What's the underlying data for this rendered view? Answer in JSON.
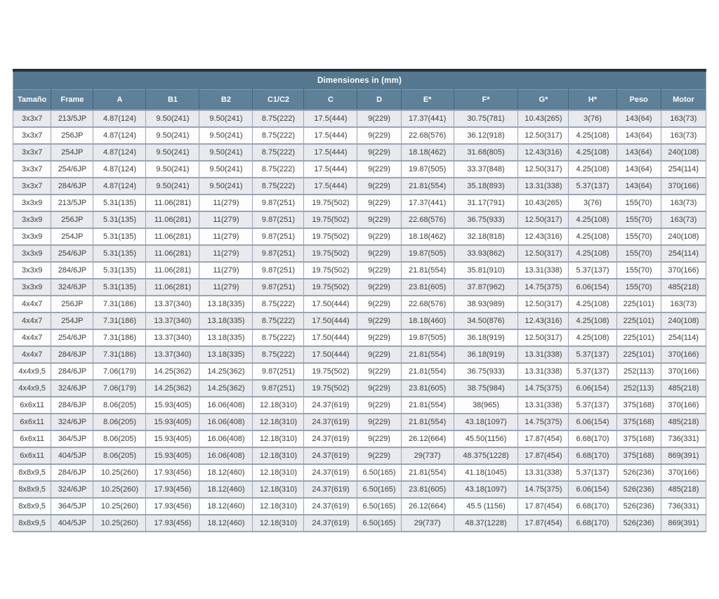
{
  "table": {
    "title": "Dimensiones in (mm)",
    "columns": [
      "Tamaño",
      "Frame",
      "A",
      "B1",
      "B2",
      "C1/C2",
      "C",
      "D",
      "E*",
      "F*",
      "G*",
      "H*",
      "Peso",
      "Motor"
    ],
    "rows": [
      [
        "3x3x7",
        "213/5JP",
        "4.87(124)",
        "9.50(241)",
        "9.50(241)",
        "8.75(222)",
        "17.5(444)",
        "9(229)",
        "17.37(441)",
        "30.75(781)",
        "10.43(265)",
        "3(76)",
        "143(64)",
        "163(73)"
      ],
      [
        "3x3x7",
        "256JP",
        "4.87(124)",
        "9.50(241)",
        "9.50(241)",
        "8.75(222)",
        "17.5(444)",
        "9(229)",
        "22.68(576)",
        "36.12(918)",
        "12.50(317)",
        "4.25(108)",
        "143(64)",
        "163(73)"
      ],
      [
        "3x3x7",
        "254JP",
        "4.87(124)",
        "9.50(241)",
        "9.50(241)",
        "8.75(222)",
        "17.5(444)",
        "9(229)",
        "18.18(462)",
        "31.68(805)",
        "12.43(316)",
        "4.25(108)",
        "143(64)",
        "240(108)"
      ],
      [
        "3x3x7",
        "254/6JP",
        "4.87(124)",
        "9.50(241)",
        "9.50(241)",
        "8.75(222)",
        "17.5(444)",
        "9(229)",
        "19.87(505)",
        "33.37(848)",
        "12.50(317)",
        "4.25(108)",
        "143(64)",
        "254(114)"
      ],
      [
        "3x3x7",
        "284/6JP",
        "4.87(124)",
        "9.50(241)",
        "9.50(241)",
        "8.75(222)",
        "17.5(444)",
        "9(229)",
        "21.81(554)",
        "35.18(893)",
        "13.31(338)",
        "5.37(137)",
        "143(64)",
        "370(166)"
      ],
      [
        "3x3x9",
        "213/5JP",
        "5.31(135)",
        "11.06(281)",
        "11(279)",
        "9.87(251)",
        "19.75(502)",
        "9(229)",
        "17.37(441)",
        "31.17(791)",
        "10.43(265)",
        "3(76)",
        "155(70)",
        "163(73)"
      ],
      [
        "3x3x9",
        "256JP",
        "5.31(135)",
        "11.06(281)",
        "11(279)",
        "9.87(251)",
        "19.75(502)",
        "9(229)",
        "22.68(576)",
        "36.75(933)",
        "12.50(317)",
        "4.25(108)",
        "155(70)",
        "163(73)"
      ],
      [
        "3x3x9",
        "254JP",
        "5.31(135)",
        "11.06(281)",
        "11(279)",
        "9.87(251)",
        "19.75(502)",
        "9(229)",
        "18.18(462)",
        "32.18(818)",
        "12.43(316)",
        "4.25(108)",
        "155(70)",
        "240(108)"
      ],
      [
        "3x3x9",
        "254/6JP",
        "5.31(135)",
        "11.06(281)",
        "11(279)",
        "9.87(251)",
        "19.75(502)",
        "9(229)",
        "19.87(505)",
        "33.93(862)",
        "12.50(317)",
        "4.25(108)",
        "155(70)",
        "254(114)"
      ],
      [
        "3x3x9",
        "284/6JP",
        "5.31(135)",
        "11.06(281)",
        "11(279)",
        "9.87(251)",
        "19.75(502)",
        "9(229)",
        "21.81(554)",
        "35.81(910)",
        "13.31(338)",
        "5.37(137)",
        "155(70)",
        "370(166)"
      ],
      [
        "3x3x9",
        "324/6JP",
        "5.31(135)",
        "11.06(281)",
        "11(279)",
        "9.87(251)",
        "19.75(502)",
        "9(229)",
        "23.81(605)",
        "37.87(962)",
        "14.75(375)",
        "6.06(154)",
        "155(70)",
        "485(218)"
      ],
      [
        "4x4x7",
        "256JP",
        "7.31(186)",
        "13.37(340)",
        "13.18(335)",
        "8.75(222)",
        "17.50(444)",
        "9(229)",
        "22.68(576)",
        "38.93(989)",
        "12.50(317)",
        "4.25(108)",
        "225(101)",
        "163(73)"
      ],
      [
        "4x4x7",
        "254JP",
        "7.31(186)",
        "13.37(340)",
        "13.18(335)",
        "8.75(222)",
        "17.50(444)",
        "9(229)",
        "18.18(460)",
        "34.50(876)",
        "12.43(316)",
        "4.25(108)",
        "225(101)",
        "240(108)"
      ],
      [
        "4x4x7",
        "254/6JP",
        "7.31(186)",
        "13.37(340)",
        "13.18(335)",
        "8.75(222)",
        "17.50(444)",
        "9(229)",
        "19.87(505)",
        "36.18(919)",
        "12.50(317)",
        "4.25(108)",
        "225(101)",
        "254(114)"
      ],
      [
        "4x4x7",
        "284/6JP",
        "7.31(186)",
        "13.37(340)",
        "13.18(335)",
        "8.75(222)",
        "17.50(444)",
        "9(229)",
        "21.81(554)",
        "36.18(919)",
        "13.31(338)",
        "5.37(137)",
        "225(101)",
        "370(166)"
      ],
      [
        "4x4x9,5",
        "284/6JP",
        "7.06(179)",
        "14.25(362)",
        "14.25(362)",
        "9.87(251)",
        "19.75(502)",
        "9(229)",
        "21.81(554)",
        "36.75(933)",
        "13.31(338)",
        "5.37(137)",
        "252(113)",
        "370(166)"
      ],
      [
        "4x4x9,5",
        "324/6JP",
        "7.06(179)",
        "14.25(362)",
        "14.25(362)",
        "9.87(251)",
        "19.75(502)",
        "9(229)",
        "23.81(605)",
        "38.75(984)",
        "14.75(375)",
        "6.06(154)",
        "252(113)",
        "485(218)"
      ],
      [
        "6x6x11",
        "284/6JP",
        "8.06(205)",
        "15.93(405)",
        "16.06(408)",
        "12.18(310)",
        "24.37(619)",
        "9(229)",
        "21.81(554)",
        "38(965)",
        "13.31(338)",
        "5.37(137)",
        "375(168)",
        "370(166)"
      ],
      [
        "6x6x11",
        "324/6JP",
        "8.06(205)",
        "15.93(405)",
        "16.06(408)",
        "12.18(310)",
        "24.37(619)",
        "9(229)",
        "21.81(554)",
        "43.18(1097)",
        "14.75(375)",
        "6.06(154)",
        "375(168)",
        "485(218)"
      ],
      [
        "6x6x11",
        "364/5JP",
        "8.06(205)",
        "15.93(405)",
        "16.06(408)",
        "12.18(310)",
        "24.37(619)",
        "9(229)",
        "26.12(664)",
        "45.50(1156)",
        "17.87(454)",
        "6.68(170)",
        "375(168)",
        "736(331)"
      ],
      [
        "6x6x11",
        "404/5JP",
        "8.06(205)",
        "15.93(405)",
        "16.06(408)",
        "12.18(310)",
        "24.37(619)",
        "9(229)",
        "29(737)",
        "48.375(1228)",
        "17.87(454)",
        "6.68(170)",
        "375(168)",
        "869(391)"
      ],
      [
        "8x8x9,5",
        "284/6JP",
        "10.25(260)",
        "17.93(456)",
        "18.12(460)",
        "12.18(310)",
        "24.37(619)",
        "6.50(165)",
        "21.81(554)",
        "41.18(1045)",
        "13.31(338)",
        "5.37(137)",
        "526(236)",
        "370(166)"
      ],
      [
        "8x8x9,5",
        "324/6JP",
        "10.25(260)",
        "17.93(456)",
        "18.12(460)",
        "12.18(310)",
        "24.37(619)",
        "6.50(165)",
        "23.81(605)",
        "43.18(1097)",
        "14.75(375)",
        "6.06(154)",
        "526(236)",
        "485(218)"
      ],
      [
        "8x8x9,5",
        "364/5JP",
        "10.25(260)",
        "17.93(456)",
        "18.12(460)",
        "12.18(310)",
        "24.37(619)",
        "6.50(165)",
        "26.12(664)",
        "45.5 (1156)",
        "17.87(454)",
        "6.68(170)",
        "526(236)",
        "736(331)"
      ],
      [
        "8x8x9,5",
        "404/5JP",
        "10.25(260)",
        "17.93(456)",
        "18.12(460)",
        "12.18(310)",
        "24.37(619)",
        "6.50(165)",
        "29(737)",
        "48.37(1228)",
        "17.87(454)",
        "6.68(170)",
        "526(236)",
        "869(391)"
      ]
    ],
    "colors": {
      "title_bg": "#55788f",
      "header_bg": "#5e8098",
      "header_text": "#ffffff",
      "row_odd_bg": "#e8eaee",
      "row_even_bg": "#fdfdfd",
      "border": "#9aa5b3",
      "top_bar": "#24313d",
      "text": "#3d3d3d"
    }
  }
}
